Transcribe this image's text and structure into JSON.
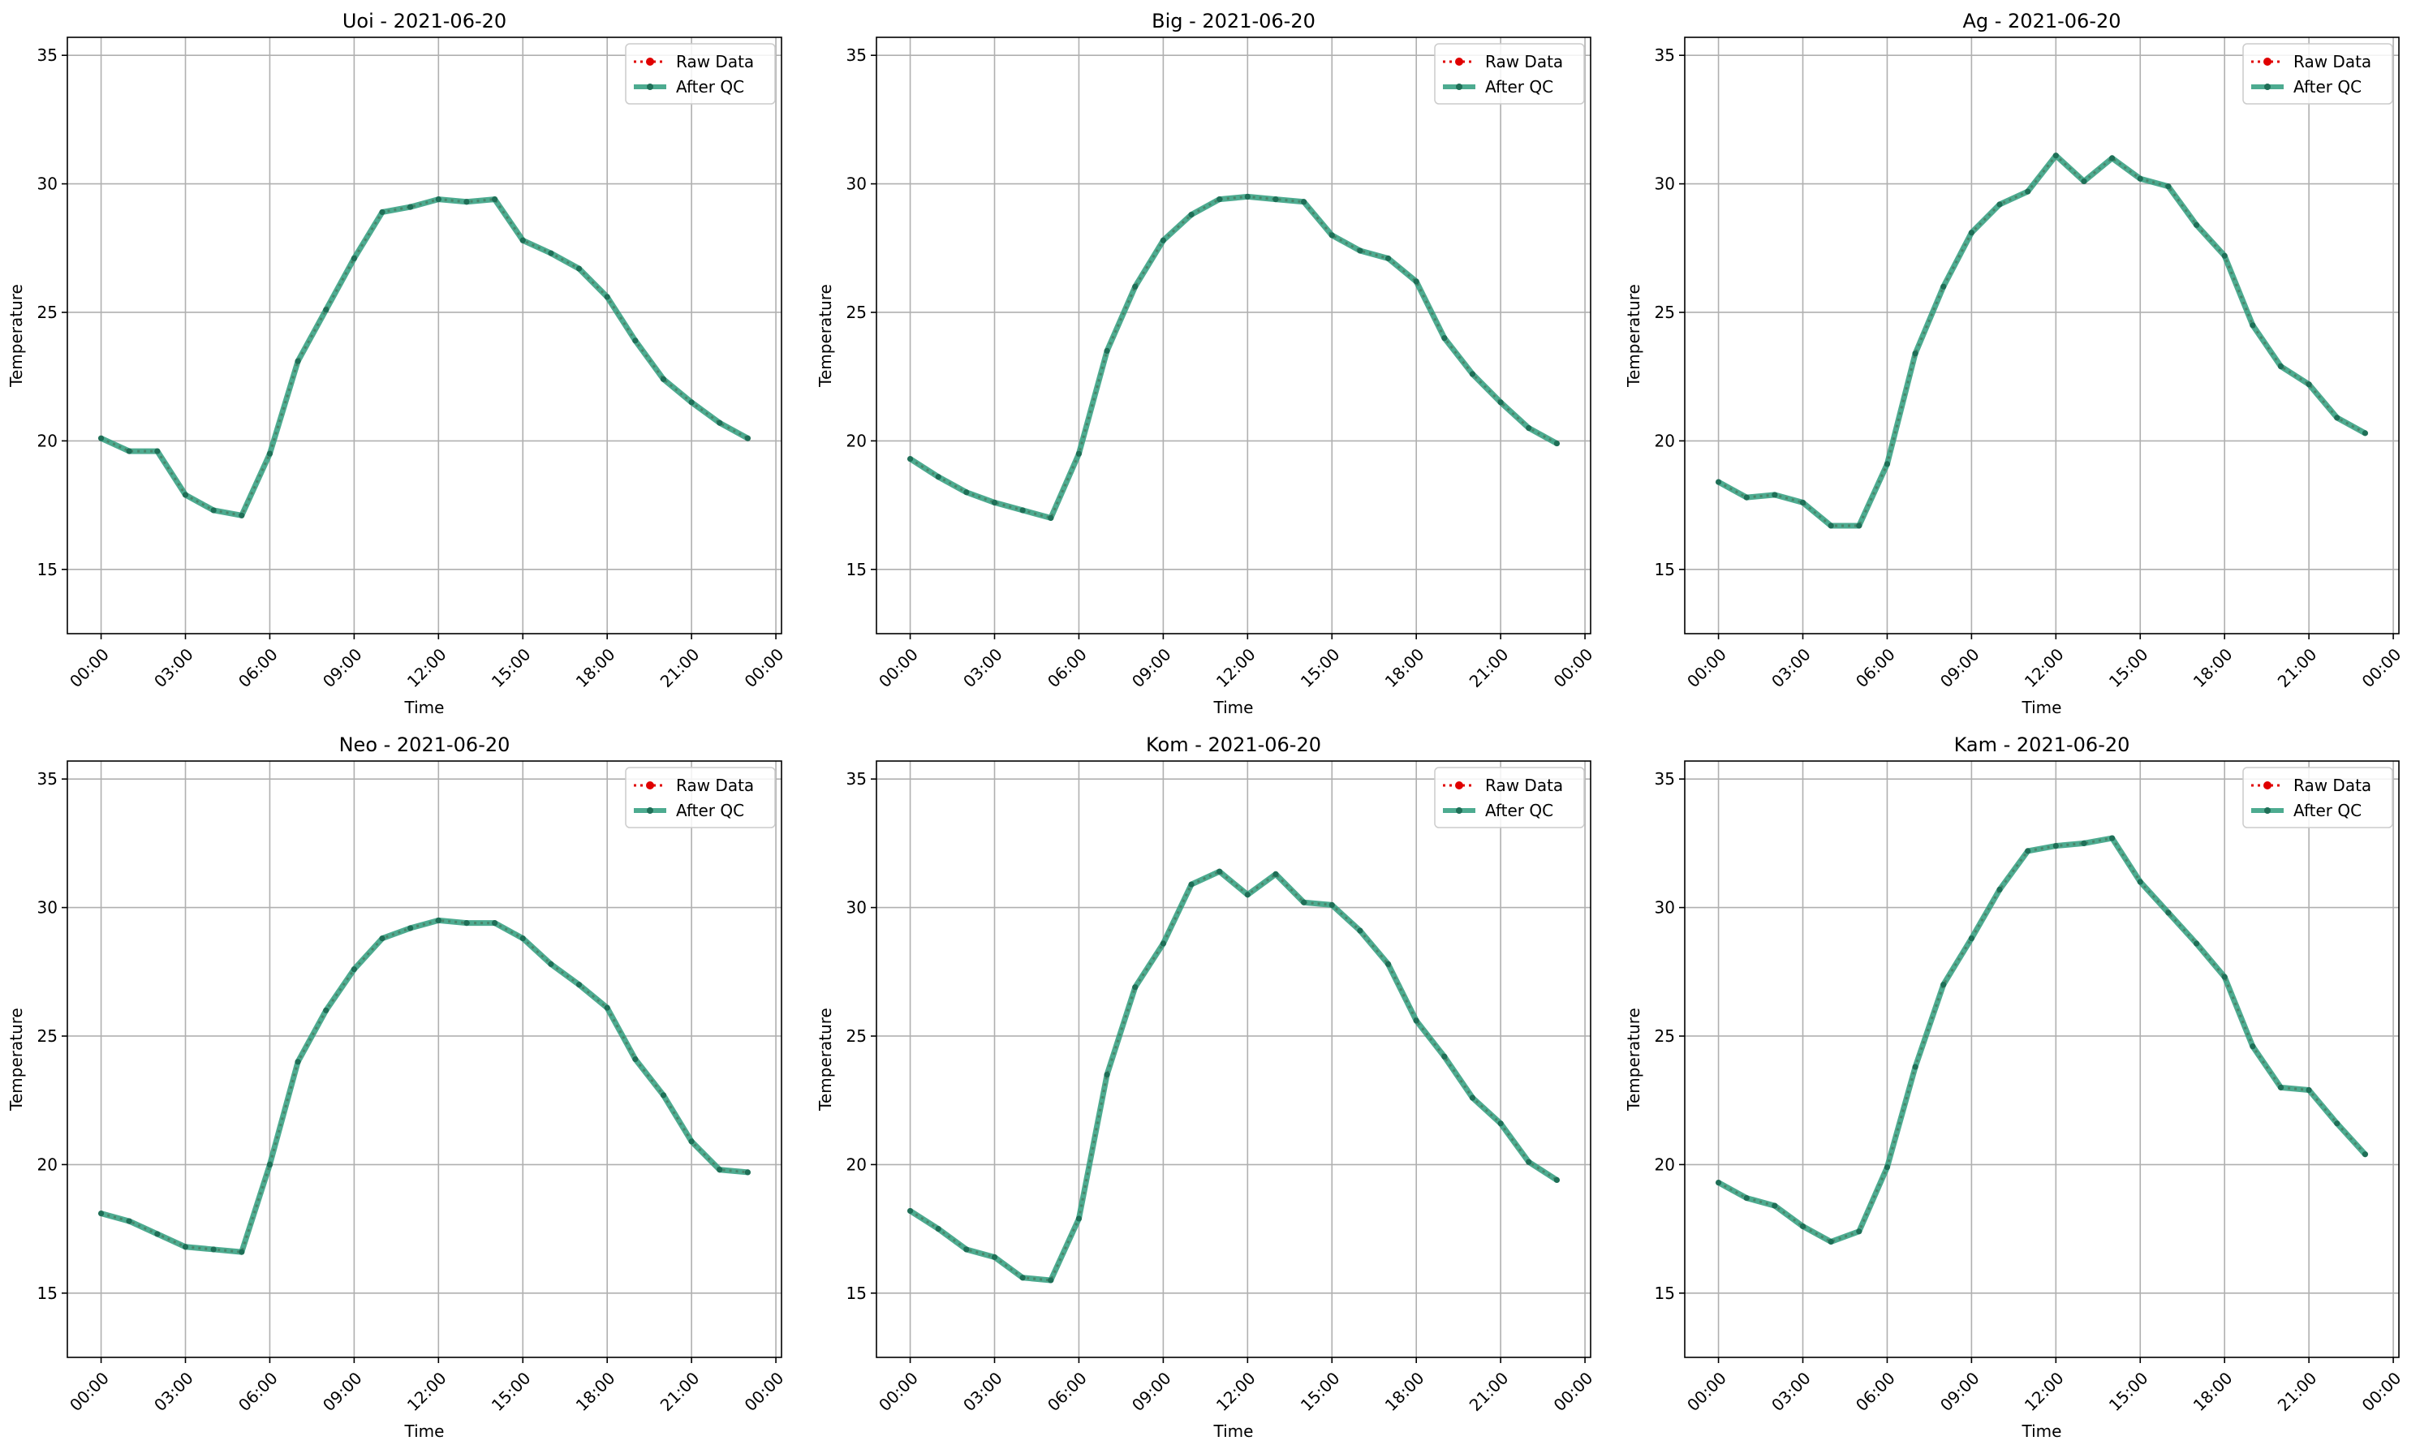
{
  "colors": {
    "raw": "#e00000",
    "qc": "#2e9c7c",
    "grid": "#b0b0b0"
  },
  "chart_data": [
    {
      "type": "line",
      "title": "Uoi - 2021-06-20",
      "xlabel": "Time",
      "ylabel": "Temperature",
      "xlim": [
        "2021-06-19T22:48",
        "2021-06-21T00:12"
      ],
      "ylim": [
        12.5,
        35.7
      ],
      "grid": true,
      "legend": "top-right",
      "x_tick_labels": [
        "00:00",
        "03:00",
        "06:00",
        "09:00",
        "12:00",
        "15:00",
        "18:00",
        "21:00",
        "00:00"
      ],
      "y_tick_labels": [
        "15",
        "20",
        "25",
        "30",
        "35"
      ],
      "x": [
        "00:00",
        "01:00",
        "02:00",
        "03:00",
        "04:00",
        "05:00",
        "06:00",
        "07:00",
        "08:00",
        "09:00",
        "10:00",
        "11:00",
        "12:00",
        "13:00",
        "14:00",
        "15:00",
        "16:00",
        "17:00",
        "18:00",
        "19:00",
        "20:00",
        "21:00",
        "22:00",
        "23:00"
      ],
      "series": [
        {
          "name": "Raw Data",
          "values": [
            20.1,
            19.6,
            19.6,
            17.9,
            17.3,
            17.1,
            19.5,
            23.1,
            25.1,
            27.1,
            28.9,
            29.1,
            29.4,
            29.3,
            29.4,
            27.8,
            27.3,
            26.7,
            25.6,
            23.9,
            22.4,
            21.5,
            20.7,
            20.1
          ]
        },
        {
          "name": "After QC",
          "values": [
            20.1,
            19.6,
            19.6,
            17.9,
            17.3,
            17.1,
            19.5,
            23.1,
            25.1,
            27.1,
            28.9,
            29.1,
            29.4,
            29.3,
            29.4,
            27.8,
            27.3,
            26.7,
            25.6,
            23.9,
            22.4,
            21.5,
            20.7,
            20.1
          ]
        }
      ]
    },
    {
      "type": "line",
      "title": "Big - 2021-06-20",
      "xlabel": "Time",
      "ylabel": "Temperature",
      "xlim": [
        "2021-06-19T22:48",
        "2021-06-21T00:12"
      ],
      "ylim": [
        12.5,
        35.7
      ],
      "grid": true,
      "legend": "top-right",
      "x_tick_labels": [
        "00:00",
        "03:00",
        "06:00",
        "09:00",
        "12:00",
        "15:00",
        "18:00",
        "21:00",
        "00:00"
      ],
      "y_tick_labels": [
        "15",
        "20",
        "25",
        "30",
        "35"
      ],
      "x": [
        "00:00",
        "01:00",
        "02:00",
        "03:00",
        "04:00",
        "05:00",
        "06:00",
        "07:00",
        "08:00",
        "09:00",
        "10:00",
        "11:00",
        "12:00",
        "13:00",
        "14:00",
        "15:00",
        "16:00",
        "17:00",
        "18:00",
        "19:00",
        "20:00",
        "21:00",
        "22:00",
        "23:00"
      ],
      "series": [
        {
          "name": "Raw Data",
          "values": [
            19.3,
            18.6,
            18.0,
            17.6,
            17.3,
            17.0,
            19.5,
            23.5,
            26.0,
            27.8,
            28.8,
            29.4,
            29.5,
            29.4,
            29.3,
            28.0,
            27.4,
            27.1,
            26.2,
            24.0,
            22.6,
            21.5,
            20.5,
            19.9
          ]
        },
        {
          "name": "After QC",
          "values": [
            19.3,
            18.6,
            18.0,
            17.6,
            17.3,
            17.0,
            19.5,
            23.5,
            26.0,
            27.8,
            28.8,
            29.4,
            29.5,
            29.4,
            29.3,
            28.0,
            27.4,
            27.1,
            26.2,
            24.0,
            22.6,
            21.5,
            20.5,
            19.9
          ]
        }
      ]
    },
    {
      "type": "line",
      "title": "Ag - 2021-06-20",
      "xlabel": "Time",
      "ylabel": "Temperature",
      "xlim": [
        "2021-06-19T22:48",
        "2021-06-21T00:12"
      ],
      "ylim": [
        12.5,
        35.7
      ],
      "grid": true,
      "legend": "top-right",
      "x_tick_labels": [
        "00:00",
        "03:00",
        "06:00",
        "09:00",
        "12:00",
        "15:00",
        "18:00",
        "21:00",
        "00:00"
      ],
      "y_tick_labels": [
        "15",
        "20",
        "25",
        "30",
        "35"
      ],
      "x": [
        "00:00",
        "01:00",
        "02:00",
        "03:00",
        "04:00",
        "05:00",
        "06:00",
        "07:00",
        "08:00",
        "09:00",
        "10:00",
        "11:00",
        "12:00",
        "13:00",
        "14:00",
        "15:00",
        "16:00",
        "17:00",
        "18:00",
        "19:00",
        "20:00",
        "21:00",
        "22:00",
        "23:00"
      ],
      "series": [
        {
          "name": "Raw Data",
          "values": [
            18.4,
            17.8,
            17.9,
            17.6,
            16.7,
            16.7,
            19.1,
            23.4,
            26.0,
            28.1,
            29.2,
            29.7,
            31.1,
            30.1,
            31.0,
            30.2,
            29.9,
            28.4,
            27.2,
            24.5,
            22.9,
            22.2,
            20.9,
            20.3
          ]
        },
        {
          "name": "After QC",
          "values": [
            18.4,
            17.8,
            17.9,
            17.6,
            16.7,
            16.7,
            19.1,
            23.4,
            26.0,
            28.1,
            29.2,
            29.7,
            31.1,
            30.1,
            31.0,
            30.2,
            29.9,
            28.4,
            27.2,
            24.5,
            22.9,
            22.2,
            20.9,
            20.3
          ]
        }
      ]
    },
    {
      "type": "line",
      "title": "Neo - 2021-06-20",
      "xlabel": "Time",
      "ylabel": "Temperature",
      "xlim": [
        "2021-06-19T22:48",
        "2021-06-21T00:12"
      ],
      "ylim": [
        12.5,
        35.7
      ],
      "grid": true,
      "legend": "top-right",
      "x_tick_labels": [
        "00:00",
        "03:00",
        "06:00",
        "09:00",
        "12:00",
        "15:00",
        "18:00",
        "21:00",
        "00:00"
      ],
      "y_tick_labels": [
        "15",
        "20",
        "25",
        "30",
        "35"
      ],
      "x": [
        "00:00",
        "01:00",
        "02:00",
        "03:00",
        "04:00",
        "05:00",
        "06:00",
        "07:00",
        "08:00",
        "09:00",
        "10:00",
        "11:00",
        "12:00",
        "13:00",
        "14:00",
        "15:00",
        "16:00",
        "17:00",
        "18:00",
        "19:00",
        "20:00",
        "21:00",
        "22:00",
        "23:00"
      ],
      "series": [
        {
          "name": "Raw Data",
          "values": [
            18.1,
            17.8,
            17.3,
            16.8,
            16.7,
            16.6,
            20.0,
            24.0,
            26.0,
            27.6,
            28.8,
            29.2,
            29.5,
            29.4,
            29.4,
            28.8,
            27.8,
            27.0,
            26.1,
            24.1,
            22.7,
            20.9,
            19.8,
            19.7
          ]
        },
        {
          "name": "After QC",
          "values": [
            18.1,
            17.8,
            17.3,
            16.8,
            16.7,
            16.6,
            20.0,
            24.0,
            26.0,
            27.6,
            28.8,
            29.2,
            29.5,
            29.4,
            29.4,
            28.8,
            27.8,
            27.0,
            26.1,
            24.1,
            22.7,
            20.9,
            19.8,
            19.7
          ]
        }
      ]
    },
    {
      "type": "line",
      "title": "Kom - 2021-06-20",
      "xlabel": "Time",
      "ylabel": "Temperature",
      "xlim": [
        "2021-06-19T22:48",
        "2021-06-21T00:12"
      ],
      "ylim": [
        12.5,
        35.7
      ],
      "grid": true,
      "legend": "top-right",
      "x_tick_labels": [
        "00:00",
        "03:00",
        "06:00",
        "09:00",
        "12:00",
        "15:00",
        "18:00",
        "21:00",
        "00:00"
      ],
      "y_tick_labels": [
        "15",
        "20",
        "25",
        "30",
        "35"
      ],
      "x": [
        "00:00",
        "01:00",
        "02:00",
        "03:00",
        "04:00",
        "05:00",
        "06:00",
        "07:00",
        "08:00",
        "09:00",
        "10:00",
        "11:00",
        "12:00",
        "13:00",
        "14:00",
        "15:00",
        "16:00",
        "17:00",
        "18:00",
        "19:00",
        "20:00",
        "21:00",
        "22:00",
        "23:00"
      ],
      "series": [
        {
          "name": "Raw Data",
          "values": [
            18.2,
            17.5,
            16.7,
            16.4,
            15.6,
            15.5,
            17.9,
            23.5,
            26.9,
            28.6,
            30.9,
            31.4,
            30.5,
            31.3,
            30.2,
            30.1,
            29.1,
            27.8,
            25.6,
            24.2,
            22.6,
            21.6,
            20.1,
            19.4
          ]
        },
        {
          "name": "After QC",
          "values": [
            18.2,
            17.5,
            16.7,
            16.4,
            15.6,
            15.5,
            17.9,
            23.5,
            26.9,
            28.6,
            30.9,
            31.4,
            30.5,
            31.3,
            30.2,
            30.1,
            29.1,
            27.8,
            25.6,
            24.2,
            22.6,
            21.6,
            20.1,
            19.4
          ]
        }
      ]
    },
    {
      "type": "line",
      "title": "Kam - 2021-06-20",
      "xlabel": "Time",
      "ylabel": "Temperature",
      "xlim": [
        "2021-06-19T22:48",
        "2021-06-21T00:12"
      ],
      "ylim": [
        12.5,
        35.7
      ],
      "grid": true,
      "legend": "top-right",
      "x_tick_labels": [
        "00:00",
        "03:00",
        "06:00",
        "09:00",
        "12:00",
        "15:00",
        "18:00",
        "21:00",
        "00:00"
      ],
      "y_tick_labels": [
        "15",
        "20",
        "25",
        "30",
        "35"
      ],
      "x": [
        "00:00",
        "01:00",
        "02:00",
        "03:00",
        "04:00",
        "05:00",
        "06:00",
        "07:00",
        "08:00",
        "09:00",
        "10:00",
        "11:00",
        "12:00",
        "13:00",
        "14:00",
        "15:00",
        "16:00",
        "17:00",
        "18:00",
        "19:00",
        "20:00",
        "21:00",
        "22:00",
        "23:00"
      ],
      "series": [
        {
          "name": "Raw Data",
          "values": [
            19.3,
            18.7,
            18.4,
            17.6,
            17.0,
            17.4,
            19.9,
            23.8,
            27.0,
            28.8,
            30.7,
            32.2,
            32.4,
            32.5,
            32.7,
            31.0,
            29.8,
            28.6,
            27.3,
            24.6,
            23.0,
            22.9,
            21.6,
            20.4
          ]
        },
        {
          "name": "After QC",
          "values": [
            19.3,
            18.7,
            18.4,
            17.6,
            17.0,
            17.4,
            19.9,
            23.8,
            27.0,
            28.8,
            30.7,
            32.2,
            32.4,
            32.5,
            32.7,
            31.0,
            29.8,
            28.6,
            27.3,
            24.6,
            23.0,
            22.9,
            21.6,
            20.4
          ]
        }
      ]
    }
  ]
}
